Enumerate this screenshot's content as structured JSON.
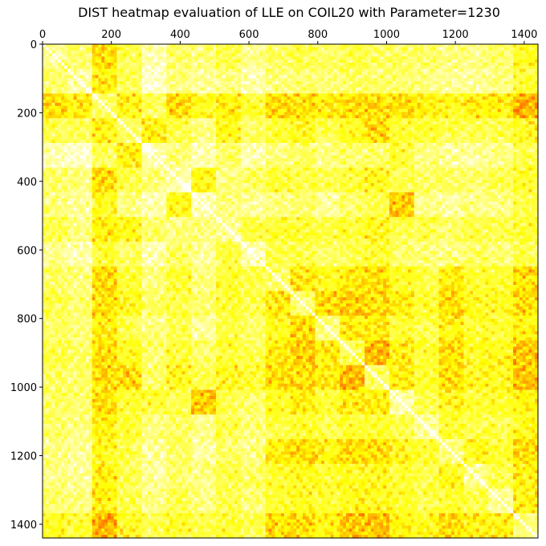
{
  "chart_data": {
    "type": "heatmap",
    "title": "DIST heatmap evaluation of LLE on COIL20 with Parameter=1230",
    "xlabel": "",
    "ylabel": "",
    "x_range": [
      0,
      1440
    ],
    "y_range": [
      0,
      1440
    ],
    "x_axis_position": "top",
    "y_axis_inverted": true,
    "x_ticks": [
      0,
      200,
      400,
      600,
      800,
      1000,
      1200,
      1400
    ],
    "y_ticks": [
      0,
      200,
      400,
      600,
      800,
      1000,
      1200,
      1400
    ],
    "colormap": "autumn_r (white-yellow-red)",
    "colors": {
      "low": "#ffffff",
      "mid": "#ffff00",
      "high": "#ff0000"
    },
    "grid": false,
    "legend": "none",
    "block_size": 72,
    "n_blocks": 20,
    "block_intensity_matrix": [
      [
        0.25,
        0.3,
        0.55,
        0.35,
        0.15,
        0.3,
        0.25,
        0.35,
        0.2,
        0.3,
        0.35,
        0.3,
        0.35,
        0.3,
        0.3,
        0.3,
        0.25,
        0.25,
        0.3,
        0.45
      ],
      [
        0.3,
        0.2,
        0.5,
        0.35,
        0.1,
        0.25,
        0.2,
        0.25,
        0.15,
        0.25,
        0.3,
        0.25,
        0.3,
        0.3,
        0.3,
        0.25,
        0.2,
        0.2,
        0.25,
        0.4
      ],
      [
        0.55,
        0.5,
        0.3,
        0.5,
        0.3,
        0.55,
        0.45,
        0.5,
        0.4,
        0.55,
        0.55,
        0.5,
        0.55,
        0.55,
        0.55,
        0.5,
        0.45,
        0.5,
        0.5,
        0.65
      ],
      [
        0.35,
        0.35,
        0.5,
        0.3,
        0.5,
        0.35,
        0.25,
        0.45,
        0.3,
        0.4,
        0.45,
        0.35,
        0.45,
        0.55,
        0.4,
        0.4,
        0.35,
        0.35,
        0.35,
        0.45
      ],
      [
        0.15,
        0.1,
        0.3,
        0.5,
        0.15,
        0.25,
        0.15,
        0.3,
        0.15,
        0.25,
        0.3,
        0.25,
        0.3,
        0.3,
        0.4,
        0.25,
        0.2,
        0.2,
        0.25,
        0.35
      ],
      [
        0.3,
        0.25,
        0.55,
        0.35,
        0.25,
        0.15,
        0.45,
        0.25,
        0.3,
        0.4,
        0.35,
        0.35,
        0.4,
        0.45,
        0.35,
        0.3,
        0.3,
        0.3,
        0.35,
        0.4
      ],
      [
        0.25,
        0.2,
        0.45,
        0.25,
        0.15,
        0.45,
        0.15,
        0.25,
        0.2,
        0.25,
        0.3,
        0.2,
        0.3,
        0.35,
        0.6,
        0.25,
        0.2,
        0.25,
        0.25,
        0.35
      ],
      [
        0.35,
        0.25,
        0.5,
        0.45,
        0.3,
        0.25,
        0.25,
        0.2,
        0.35,
        0.4,
        0.4,
        0.35,
        0.4,
        0.45,
        0.35,
        0.35,
        0.3,
        0.35,
        0.35,
        0.4
      ],
      [
        0.2,
        0.15,
        0.4,
        0.3,
        0.15,
        0.3,
        0.2,
        0.35,
        0.15,
        0.35,
        0.35,
        0.3,
        0.35,
        0.4,
        0.3,
        0.25,
        0.25,
        0.3,
        0.25,
        0.35
      ],
      [
        0.3,
        0.25,
        0.55,
        0.4,
        0.25,
        0.4,
        0.25,
        0.4,
        0.35,
        0.3,
        0.5,
        0.45,
        0.5,
        0.55,
        0.45,
        0.35,
        0.5,
        0.4,
        0.4,
        0.55
      ],
      [
        0.35,
        0.3,
        0.55,
        0.45,
        0.3,
        0.35,
        0.3,
        0.4,
        0.35,
        0.5,
        0.3,
        0.55,
        0.6,
        0.55,
        0.5,
        0.4,
        0.55,
        0.45,
        0.45,
        0.55
      ],
      [
        0.3,
        0.25,
        0.5,
        0.35,
        0.25,
        0.35,
        0.2,
        0.35,
        0.3,
        0.45,
        0.55,
        0.25,
        0.5,
        0.5,
        0.4,
        0.35,
        0.5,
        0.4,
        0.4,
        0.5
      ],
      [
        0.35,
        0.3,
        0.55,
        0.45,
        0.3,
        0.4,
        0.3,
        0.4,
        0.35,
        0.5,
        0.6,
        0.5,
        0.35,
        0.65,
        0.5,
        0.4,
        0.55,
        0.45,
        0.45,
        0.6
      ],
      [
        0.3,
        0.3,
        0.55,
        0.55,
        0.3,
        0.45,
        0.35,
        0.45,
        0.4,
        0.55,
        0.55,
        0.5,
        0.65,
        0.3,
        0.5,
        0.4,
        0.55,
        0.45,
        0.45,
        0.6
      ],
      [
        0.3,
        0.3,
        0.55,
        0.4,
        0.4,
        0.35,
        0.6,
        0.35,
        0.3,
        0.45,
        0.5,
        0.4,
        0.5,
        0.5,
        0.2,
        0.35,
        0.45,
        0.4,
        0.4,
        0.5
      ],
      [
        0.3,
        0.25,
        0.5,
        0.4,
        0.25,
        0.3,
        0.25,
        0.35,
        0.25,
        0.35,
        0.4,
        0.35,
        0.4,
        0.4,
        0.35,
        0.2,
        0.4,
        0.35,
        0.35,
        0.45
      ],
      [
        0.25,
        0.2,
        0.45,
        0.35,
        0.2,
        0.3,
        0.2,
        0.3,
        0.25,
        0.5,
        0.55,
        0.5,
        0.55,
        0.55,
        0.45,
        0.4,
        0.25,
        0.45,
        0.4,
        0.55
      ],
      [
        0.25,
        0.2,
        0.5,
        0.35,
        0.2,
        0.3,
        0.25,
        0.35,
        0.3,
        0.4,
        0.45,
        0.4,
        0.45,
        0.45,
        0.4,
        0.35,
        0.45,
        0.2,
        0.35,
        0.5
      ],
      [
        0.3,
        0.25,
        0.5,
        0.35,
        0.25,
        0.35,
        0.25,
        0.35,
        0.25,
        0.4,
        0.45,
        0.4,
        0.45,
        0.45,
        0.4,
        0.35,
        0.4,
        0.35,
        0.2,
        0.5
      ],
      [
        0.45,
        0.4,
        0.65,
        0.45,
        0.35,
        0.4,
        0.35,
        0.4,
        0.35,
        0.55,
        0.55,
        0.5,
        0.6,
        0.6,
        0.5,
        0.45,
        0.55,
        0.5,
        0.5,
        0.25
      ]
    ]
  }
}
